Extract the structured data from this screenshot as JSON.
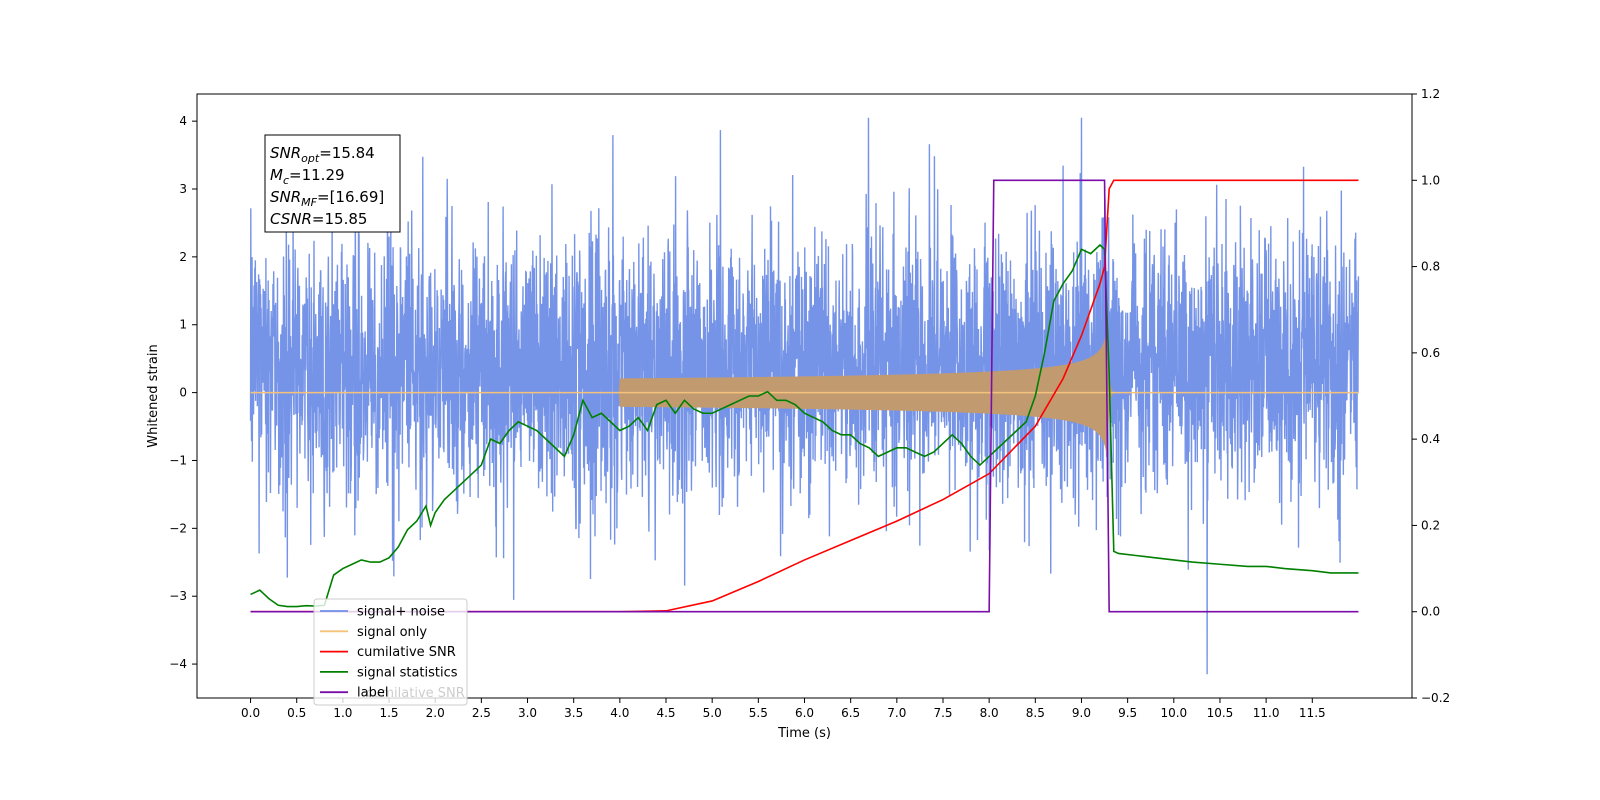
{
  "chart_data": {
    "type": "line",
    "title": "",
    "xlabel": "Time (s)",
    "ylabel": "Whitened strain",
    "y2label": "",
    "xlim": [
      -0.58,
      12.58
    ],
    "ylim": [
      -4.5,
      4.4
    ],
    "y2lim": [
      -0.2,
      1.2
    ],
    "xticks": [
      0.0,
      0.5,
      1.0,
      1.5,
      2.0,
      2.5,
      3.0,
      3.5,
      4.0,
      4.5,
      5.0,
      5.5,
      6.0,
      6.5,
      7.0,
      7.5,
      8.0,
      8.5,
      9.0,
      9.5,
      10.0,
      10.5,
      11.0,
      11.5
    ],
    "xtick_labels": [
      "0.0",
      "0.5",
      "1.0",
      "1.5",
      "2.0",
      "2.5",
      "3.0",
      "3.5",
      "4.0",
      "4.5",
      "5.0",
      "5.5",
      "6.0",
      "6.5",
      "7.0",
      "7.5",
      "8.0",
      "8.5",
      "9.0",
      "9.5",
      "10.0",
      "10.5",
      "11.0",
      "11.5"
    ],
    "yticks": [
      -4,
      -3,
      -2,
      -1,
      0,
      1,
      2,
      3,
      4
    ],
    "ytick_labels": [
      "−4",
      "−3",
      "−2",
      "−1",
      "0",
      "1",
      "2",
      "3",
      "4"
    ],
    "y2ticks": [
      -0.2,
      0.0,
      0.2,
      0.4,
      0.6,
      0.8,
      1.0,
      1.2
    ],
    "y2tick_labels": [
      "−0.2",
      "0.0",
      "0.2",
      "0.4",
      "0.6",
      "0.8",
      "1.0",
      "1.2"
    ],
    "grid": false,
    "legend_position": "lower-left",
    "series": [
      {
        "name": "signal+ noise",
        "color": "#6f8ee6",
        "axis": "left",
        "x_range": [
          0.0,
          12.0
        ],
        "noise_std": 1.0,
        "offset": 0.4
      },
      {
        "name": "signal only",
        "color": "#f4c27a",
        "fill_color": "#c29a70",
        "axis": "left",
        "x_range": [
          0.0,
          12.0
        ],
        "chirp_start": 4.0,
        "merger_time": 9.28,
        "peak_amplitude": 1.0
      },
      {
        "name": "cumilative SNR",
        "color": "#ff0000",
        "axis": "right",
        "x": [
          0.0,
          4.0,
          4.5,
          5.0,
          5.5,
          6.0,
          6.5,
          7.0,
          7.5,
          8.0,
          8.5,
          8.8,
          9.0,
          9.1,
          9.2,
          9.25,
          9.3,
          9.35,
          12.0
        ],
        "y": [
          0.0,
          0.0,
          0.002,
          0.025,
          0.07,
          0.12,
          0.165,
          0.21,
          0.26,
          0.32,
          0.43,
          0.54,
          0.64,
          0.7,
          0.76,
          0.8,
          0.98,
          1.0,
          1.0
        ]
      },
      {
        "name": "signal statistics",
        "color": "#008000",
        "axis": "right",
        "x": [
          0.0,
          0.05,
          0.1,
          0.15,
          0.2,
          0.3,
          0.4,
          0.5,
          0.6,
          0.7,
          0.8,
          0.85,
          0.9,
          1.0,
          1.1,
          1.2,
          1.3,
          1.4,
          1.5,
          1.6,
          1.7,
          1.8,
          1.9,
          1.95,
          2.0,
          2.1,
          2.2,
          2.3,
          2.4,
          2.5,
          2.6,
          2.7,
          2.8,
          2.9,
          3.0,
          3.1,
          3.2,
          3.3,
          3.4,
          3.5,
          3.6,
          3.7,
          3.8,
          3.9,
          4.0,
          4.1,
          4.2,
          4.3,
          4.4,
          4.5,
          4.6,
          4.7,
          4.8,
          4.9,
          5.0,
          5.1,
          5.2,
          5.3,
          5.4,
          5.5,
          5.6,
          5.7,
          5.8,
          5.9,
          6.0,
          6.1,
          6.2,
          6.3,
          6.4,
          6.5,
          6.6,
          6.7,
          6.8,
          6.9,
          7.0,
          7.1,
          7.2,
          7.3,
          7.4,
          7.5,
          7.6,
          7.7,
          7.8,
          7.9,
          8.0,
          8.1,
          8.2,
          8.3,
          8.4,
          8.5,
          8.6,
          8.7,
          8.8,
          8.9,
          9.0,
          9.1,
          9.2,
          9.25,
          9.3,
          9.35,
          9.4,
          9.6,
          9.8,
          10.0,
          10.2,
          10.5,
          10.8,
          11.0,
          11.2,
          11.5,
          11.7,
          11.8,
          12.0
        ],
        "y": [
          0.04,
          0.045,
          0.05,
          0.04,
          0.03,
          0.015,
          0.012,
          0.012,
          0.014,
          0.013,
          0.015,
          0.05,
          0.085,
          0.1,
          0.11,
          0.12,
          0.115,
          0.115,
          0.125,
          0.15,
          0.19,
          0.21,
          0.245,
          0.2,
          0.23,
          0.26,
          0.28,
          0.3,
          0.32,
          0.34,
          0.4,
          0.39,
          0.42,
          0.44,
          0.43,
          0.42,
          0.4,
          0.38,
          0.36,
          0.41,
          0.49,
          0.45,
          0.46,
          0.44,
          0.42,
          0.43,
          0.45,
          0.42,
          0.48,
          0.49,
          0.46,
          0.49,
          0.47,
          0.46,
          0.46,
          0.47,
          0.48,
          0.49,
          0.5,
          0.5,
          0.51,
          0.49,
          0.49,
          0.48,
          0.46,
          0.45,
          0.44,
          0.42,
          0.41,
          0.41,
          0.39,
          0.38,
          0.36,
          0.37,
          0.38,
          0.38,
          0.37,
          0.36,
          0.37,
          0.39,
          0.41,
          0.39,
          0.36,
          0.34,
          0.36,
          0.38,
          0.4,
          0.42,
          0.44,
          0.5,
          0.6,
          0.72,
          0.76,
          0.79,
          0.84,
          0.83,
          0.85,
          0.84,
          0.55,
          0.14,
          0.135,
          0.13,
          0.125,
          0.12,
          0.115,
          0.11,
          0.105,
          0.105,
          0.1,
          0.095,
          0.09,
          0.09,
          0.09
        ]
      },
      {
        "name": "label",
        "color": "#7b0da8",
        "axis": "right",
        "x": [
          0.0,
          8.0,
          8.05,
          9.25,
          9.3,
          12.0
        ],
        "y": [
          0.0,
          0.0,
          1.0,
          1.0,
          0.0,
          0.0
        ]
      }
    ],
    "annotation": {
      "lines": [
        {
          "name": "SNR",
          "sub": "opt",
          "value": "=15.84"
        },
        {
          "name": "M",
          "sub": "c",
          "value": "=11.29"
        },
        {
          "name": "SNR",
          "sub": "MF",
          "value": "=[16.69]"
        },
        {
          "name": "CSNR",
          "sub": "",
          "value": "=15.85"
        }
      ]
    },
    "legend_occluded_text": "cumilative SNR"
  }
}
